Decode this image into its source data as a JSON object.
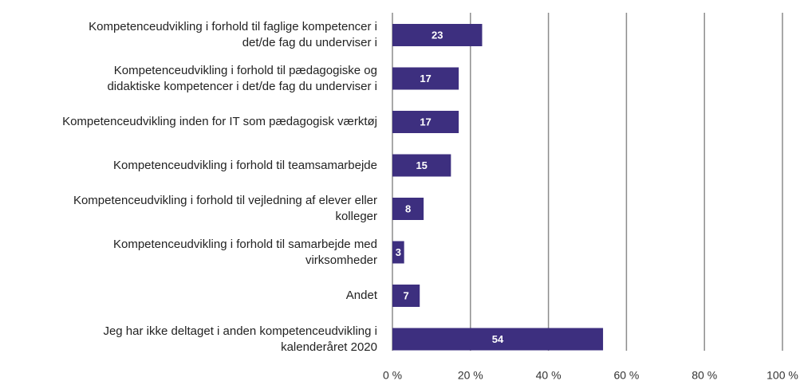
{
  "chart_data": {
    "type": "bar",
    "orientation": "horizontal",
    "categories": [
      "Kompetenceudvikling i forhold til faglige kompetencer i\ndet/de fag du underviser i",
      "Kompetenceudvikling i forhold til pædagogiske og\ndidaktiske kompetencer i det/de fag du underviser i",
      "Kompetenceudvikling inden for IT som pædagogisk værktøj",
      "Kompetenceudvikling i forhold til teamsamarbejde",
      "Kompetenceudvikling i forhold til vejledning af elever eller\nkolleger",
      "Kompetenceudvikling i forhold til samarbejde med\nvirksomheder",
      "Andet",
      "Jeg har ikke deltaget i anden kompetenceudvikling i\nkalenderåret 2020"
    ],
    "values": [
      23,
      17,
      17,
      15,
      8,
      3,
      7,
      54
    ],
    "color": "#3d2f7f",
    "xlim": [
      0,
      100
    ],
    "xticks": [
      {
        "value": 0,
        "label": "0 %"
      },
      {
        "value": 20,
        "label": "20 %"
      },
      {
        "value": 40,
        "label": "40 %"
      },
      {
        "value": 60,
        "label": "60 %"
      },
      {
        "value": 80,
        "label": "80 %"
      },
      {
        "value": 100,
        "label": "100 %"
      }
    ],
    "grid": true
  }
}
